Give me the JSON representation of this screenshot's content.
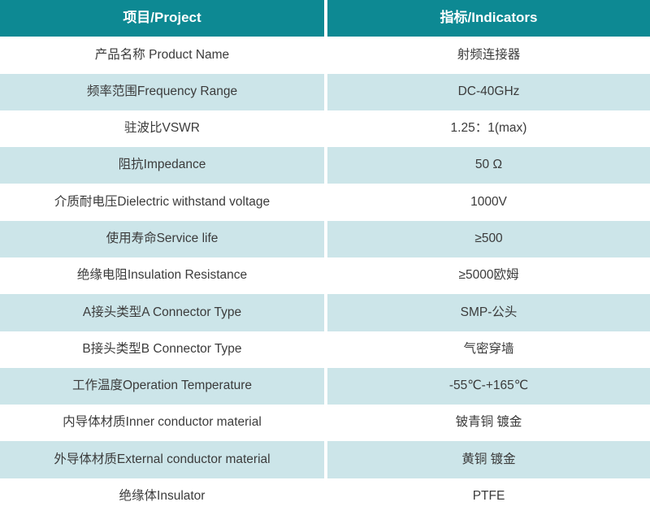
{
  "table": {
    "header": {
      "col1": "项目/Project",
      "col2": "指标/Indicators"
    },
    "rows": [
      {
        "project": "产品名称 Product Name",
        "indicator": "射频连接器"
      },
      {
        "project": "频率范围Frequency Range",
        "indicator": "DC-40GHz"
      },
      {
        "project": "驻波比VSWR",
        "indicator": "1.25：1(max)"
      },
      {
        "project": "阻抗Impedance",
        "indicator": "50 Ω"
      },
      {
        "project": "介质耐电压Dielectric withstand voltage",
        "indicator": "1000V"
      },
      {
        "project": "使用寿命Service life",
        "indicator": "≥500"
      },
      {
        "project": "绝缘电阻Insulation Resistance",
        "indicator": "≥5000欧姆"
      },
      {
        "project": "A接头类型A Connector Type",
        "indicator": "SMP-公头"
      },
      {
        "project": "B接头类型B Connector Type",
        "indicator": "气密穿墙"
      },
      {
        "project": "工作温度Operation Temperature",
        "indicator": "-55℃-+165℃"
      },
      {
        "project": "内导体材质Inner conductor material",
        "indicator": "铍青铜 镀金"
      },
      {
        "project": "外导体材质External conductor material",
        "indicator": "黄铜 镀金"
      },
      {
        "project": "绝缘体Insulator",
        "indicator": "PTFE"
      }
    ],
    "colors": {
      "header_bg": "#0d8993",
      "header_text": "#ffffff",
      "row_bg": "#ffffff",
      "row_alt_bg": "#cce5e9",
      "cell_text": "#3b3b3b"
    }
  }
}
